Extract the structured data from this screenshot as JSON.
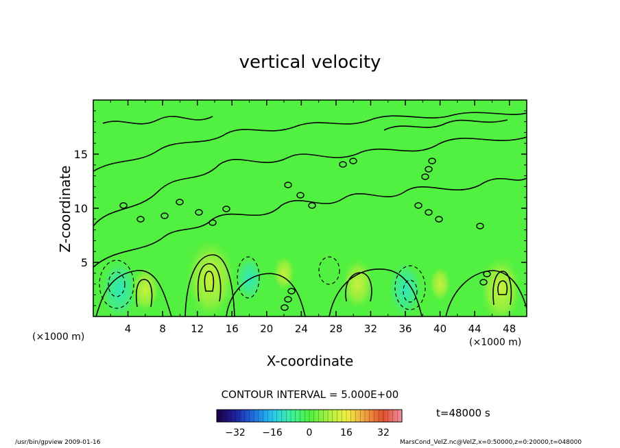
{
  "chart_data": {
    "type": "heatmap",
    "title": "vertical velocity",
    "xlabel": "X-coordinate",
    "ylabel": "Z-coordinate",
    "x_unit_left": "(×1000 m)",
    "x_unit_right": "(×1000 m)",
    "xlim": [
      0,
      50
    ],
    "ylim": [
      0,
      20
    ],
    "x_ticks": [
      "4",
      "8",
      "12",
      "16",
      "20",
      "24",
      "28",
      "32",
      "36",
      "40",
      "44",
      "48"
    ],
    "y_ticks": [
      "5",
      "10",
      "15"
    ],
    "contour_interval_label": "CONTOUR INTERVAL = 5.000E+00",
    "time_label": "t=48000 s",
    "colorbar": {
      "range": [
        -40,
        40
      ],
      "ticks": [
        "−32",
        "−16",
        "0",
        "16",
        "32"
      ],
      "colors": [
        "#1a0040",
        "#1f1fa0",
        "#1f6fe0",
        "#27c7f0",
        "#3ff0a0",
        "#4cf040",
        "#a8f040",
        "#f0f040",
        "#f0a040",
        "#e05030",
        "#f090a0"
      ]
    },
    "field_cells": [
      {
        "x": 3,
        "z": 2.5,
        "w": -18
      },
      {
        "x": 6,
        "z": 2.5,
        "w": 12
      },
      {
        "x": 13.5,
        "z": 3.5,
        "w": 25
      },
      {
        "x": 18,
        "z": 3.5,
        "w": -12
      },
      {
        "x": 22,
        "z": 4,
        "w": 8
      },
      {
        "x": 30.5,
        "z": 3,
        "w": 14
      },
      {
        "x": 36,
        "z": 2.5,
        "w": -16
      },
      {
        "x": 40,
        "z": 3,
        "w": 8
      },
      {
        "x": 47,
        "z": 2.5,
        "w": 20
      }
    ]
  },
  "footer": {
    "left": "/usr/bin/gpview  2009-01-16",
    "right": "MarsCond_VelZ.nc@VelZ,x=0:50000,z=0:20000,t=048000"
  }
}
